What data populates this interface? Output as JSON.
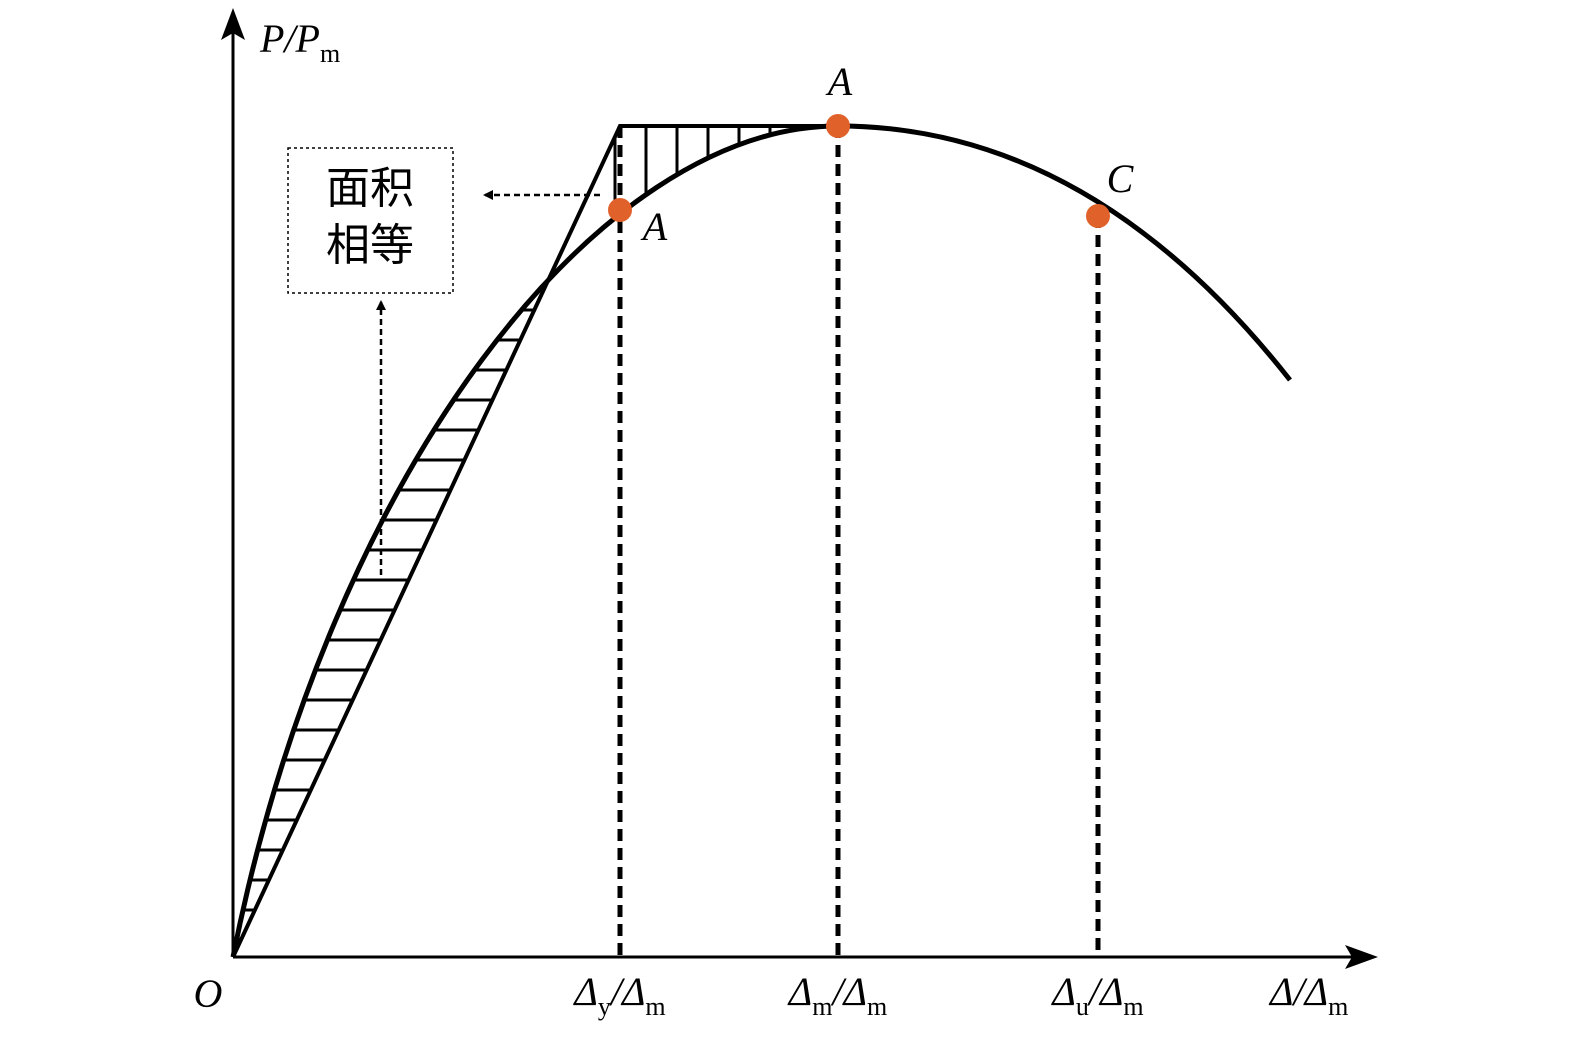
{
  "axes": {
    "y_label": {
      "main": "P/P",
      "sub": "m"
    },
    "x_label": {
      "main": "Δ/Δ",
      "sub": "m"
    },
    "origin": "O"
  },
  "x_ticks": [
    {
      "a": "Δ",
      "a_sub": "y",
      "b": "/Δ",
      "b_sub": "m"
    },
    {
      "a": "Δ",
      "a_sub": "m",
      "b": "/Δ",
      "b_sub": "m"
    },
    {
      "a": "Δ",
      "a_sub": "u",
      "b": "/Δ",
      "b_sub": "m"
    }
  ],
  "points": [
    {
      "label": "A"
    },
    {
      "label": "A"
    },
    {
      "label": "C"
    }
  ],
  "note": {
    "lines": [
      "面积",
      "相等"
    ]
  }
}
